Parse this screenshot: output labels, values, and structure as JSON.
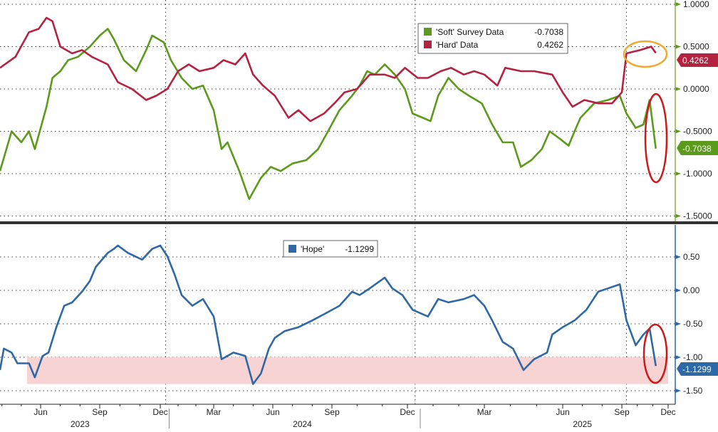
{
  "chart_data": [
    {
      "type": "line",
      "panel": "top",
      "x_unit": "months since Jan 2023 (0 = Jan 1 2023)",
      "ylim": [
        -1.5,
        1.0
      ],
      "yticks": [
        1.0,
        0.5,
        0.0,
        -0.5,
        -1.0,
        -1.5
      ],
      "ytick_labels": [
        "1.0000",
        "0.5000",
        "0.0000",
        "-0.5000",
        "-1.0000",
        "-1.5000"
      ],
      "grid": true,
      "legend_position": "top-center",
      "series": [
        {
          "name": "'Soft' Survey Data",
          "legend_value": "-0.7038",
          "last_value_tag": "-0.7038",
          "color": "#5b9a1b",
          "x": [
            2.9,
            3.5,
            4.0,
            4.4,
            4.7,
            5.3,
            5.6,
            6.0,
            6.4,
            6.9,
            7.5,
            8.0,
            8.4,
            8.7,
            9.2,
            9.8,
            10.3,
            10.6,
            11.2,
            11.6,
            12.2,
            12.8,
            13.4,
            14.0,
            14.4,
            14.7,
            15.3,
            15.8,
            16.4,
            16.9,
            17.4,
            18.0,
            18.7,
            19.3,
            19.8,
            20.3,
            20.8,
            21.1,
            21.4,
            21.7,
            22.1,
            22.5,
            22.9,
            23.2,
            23.6,
            23.9,
            24.2,
            24.6,
            25.0,
            25.4,
            25.9,
            26.3,
            26.7,
            27.1,
            27.4,
            27.8,
            28.2,
            28.5,
            28.9,
            29.3,
            29.6,
            29.9,
            30.6,
            31.3,
            31.9,
            32.3,
            32.9,
            33.4,
            33.8,
            34.2
          ],
          "y": [
            -0.97,
            -0.5,
            -0.63,
            -0.5,
            -0.71,
            -0.21,
            0.13,
            0.21,
            0.34,
            0.38,
            0.5,
            0.63,
            0.71,
            0.59,
            0.34,
            0.21,
            0.46,
            0.63,
            0.55,
            0.34,
            0.13,
            0.0,
            0.04,
            -0.25,
            -0.71,
            -0.63,
            -0.97,
            -1.3,
            -1.05,
            -0.92,
            -0.97,
            -0.88,
            -0.84,
            -0.71,
            -0.5,
            -0.25,
            -0.08,
            0.04,
            0.21,
            0.17,
            0.29,
            0.17,
            0.0,
            -0.29,
            -0.34,
            -0.38,
            -0.08,
            0.13,
            0.0,
            -0.08,
            -0.17,
            -0.42,
            -0.63,
            -0.63,
            -0.92,
            -0.84,
            -0.71,
            -0.5,
            -0.59,
            -0.67,
            -0.5,
            -0.34,
            -0.17,
            -0.13,
            -0.08,
            -0.29,
            -0.46,
            -0.42,
            -0.13,
            -0.7038
          ]
        },
        {
          "name": "'Hard' Data",
          "legend_value": "0.4262",
          "last_value_tag": "0.4262",
          "color": "#b5223f",
          "x": [
            2.9,
            3.7,
            4.4,
            4.9,
            5.3,
            5.6,
            6.0,
            6.6,
            7.1,
            7.6,
            8.4,
            8.9,
            9.6,
            10.3,
            10.8,
            11.4,
            12.0,
            12.6,
            13.2,
            14.0,
            14.5,
            15.1,
            15.6,
            16.0,
            16.5,
            17.1,
            17.8,
            18.3,
            18.9,
            19.6,
            20.1,
            20.5,
            21.0,
            21.5,
            22.1,
            22.5,
            22.9,
            23.4,
            23.8,
            24.3,
            24.7,
            25.2,
            25.6,
            26.0,
            26.5,
            26.8,
            27.4,
            27.9,
            28.6,
            29.0,
            29.5,
            30.1,
            30.8,
            31.5,
            32.0,
            32.3,
            33.2,
            33.9,
            34.2
          ],
          "y": [
            0.25,
            0.38,
            0.67,
            0.71,
            0.84,
            0.8,
            0.5,
            0.42,
            0.46,
            0.38,
            0.29,
            0.08,
            0.0,
            -0.13,
            -0.08,
            0.0,
            0.21,
            0.29,
            0.21,
            0.25,
            0.34,
            0.29,
            0.42,
            0.17,
            0.04,
            -0.08,
            -0.34,
            -0.25,
            -0.38,
            -0.29,
            -0.17,
            -0.04,
            0.0,
            0.17,
            0.17,
            0.13,
            0.25,
            0.13,
            0.13,
            0.21,
            0.25,
            0.17,
            0.21,
            0.17,
            0.04,
            0.25,
            0.21,
            0.21,
            0.17,
            -0.04,
            -0.21,
            -0.13,
            -0.17,
            -0.17,
            -0.04,
            0.42,
            0.46,
            0.5,
            0.4262
          ]
        }
      ]
    },
    {
      "type": "line",
      "panel": "bottom",
      "x_unit": "months since Jan 2023 (0 = Jan 1 2023)",
      "ylim": [
        -1.7,
        0.9
      ],
      "yticks": [
        0.5,
        0.0,
        -0.5,
        -1.0,
        -1.5
      ],
      "ytick_labels": [
        "0.50",
        "0.00",
        "-0.50",
        "-1.00",
        "-1.50"
      ],
      "grid": true,
      "legend_position": "top-center",
      "shaded_band": {
        "y_from": -1.4,
        "y_to": -1.0,
        "x_from": 4.3,
        "x_to": 35.0,
        "color": "#f8d3d3"
      },
      "series": [
        {
          "name": "'Hope'",
          "legend_value": "-1.1299",
          "last_value_tag": "-1.1299",
          "color": "#2e68a6",
          "x": [
            2.9,
            3.1,
            3.5,
            3.8,
            4.4,
            4.7,
            5.1,
            5.4,
            5.8,
            6.2,
            6.6,
            7.1,
            7.5,
            7.8,
            8.4,
            8.7,
            8.9,
            9.4,
            10.1,
            10.6,
            11.0,
            11.4,
            11.8,
            12.2,
            12.8,
            13.4,
            14.0,
            14.4,
            15.0,
            15.6,
            16.0,
            16.4,
            16.8,
            17.1,
            17.6,
            18.3,
            19.0,
            19.7,
            20.3,
            20.8,
            21.1,
            21.5,
            22.1,
            22.4,
            22.8,
            23.2,
            23.8,
            24.2,
            24.6,
            25.2,
            25.6,
            26.0,
            26.3,
            26.7,
            27.1,
            27.5,
            27.9,
            28.4,
            28.6,
            29.0,
            29.6,
            30.2,
            30.8,
            31.3,
            31.9,
            32.3,
            32.9,
            33.4,
            33.8,
            34.2
          ],
          "y": [
            -1.19,
            -0.87,
            -0.93,
            -1.09,
            -1.09,
            -1.3,
            -0.98,
            -0.93,
            -0.55,
            -0.23,
            -0.18,
            -0.02,
            0.14,
            0.35,
            0.56,
            0.62,
            0.67,
            0.56,
            0.46,
            0.62,
            0.67,
            0.51,
            0.24,
            -0.07,
            -0.23,
            -0.13,
            -0.39,
            -1.03,
            -0.93,
            -0.98,
            -1.4,
            -1.24,
            -0.87,
            -0.71,
            -0.61,
            -0.55,
            -0.45,
            -0.34,
            -0.23,
            -0.02,
            -0.07,
            0.03,
            0.19,
            0.03,
            -0.07,
            -0.29,
            -0.39,
            -0.13,
            -0.18,
            -0.13,
            -0.07,
            -0.23,
            -0.45,
            -0.77,
            -0.87,
            -1.19,
            -1.03,
            -0.93,
            -0.66,
            -0.55,
            -0.45,
            -0.29,
            -0.02,
            0.03,
            0.09,
            -0.45,
            -0.82,
            -0.66,
            -0.57,
            -1.1299
          ]
        }
      ]
    }
  ],
  "x_axis": {
    "ticks": [
      {
        "m": 5,
        "label": "Jun"
      },
      {
        "m": 8,
        "label": "Sep"
      },
      {
        "m": 11,
        "label": "Dec"
      },
      {
        "m": 14,
        "label": "Mar"
      },
      {
        "m": 17,
        "label": "Jun"
      },
      {
        "m": 20,
        "label": "Sep"
      },
      {
        "m": 23,
        "label": "Dec"
      },
      {
        "m": 26,
        "label": "Mar"
      },
      {
        "m": 29,
        "label": "Jun"
      },
      {
        "m": 32,
        "label": "Sep"
      },
      {
        "m": 35,
        "label": "Dec"
      }
    ],
    "years": [
      {
        "m": 7,
        "label": "2023"
      },
      {
        "m": 18.5,
        "label": "2024"
      },
      {
        "m": 30,
        "label": "2025"
      }
    ]
  },
  "annotations": [
    {
      "name": "hard-data-recent-highlight",
      "color": "#f0a830"
    },
    {
      "name": "soft-data-recent-drop",
      "color": "#cc1a1a"
    },
    {
      "name": "hope-recent-drop",
      "color": "#cc1a1a"
    }
  ]
}
